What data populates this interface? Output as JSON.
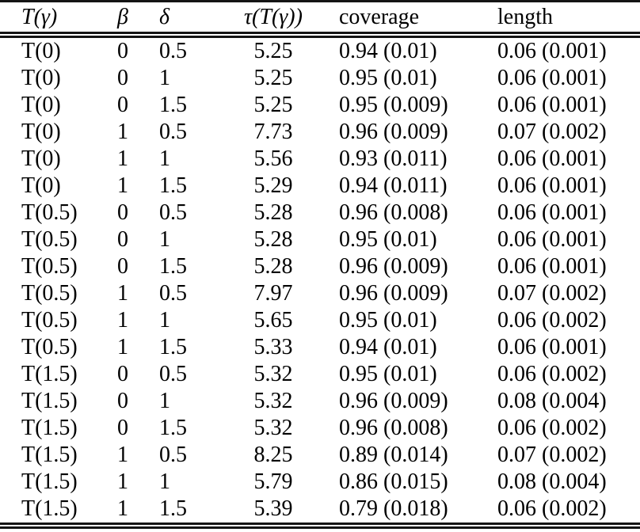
{
  "table": {
    "columns": [
      {
        "key": "t-gamma",
        "label": "T(γ)",
        "math": true
      },
      {
        "key": "beta",
        "label": "β",
        "math": true
      },
      {
        "key": "delta",
        "label": "δ",
        "math": true
      },
      {
        "key": "tau-t-gamma",
        "label": "τ(T(γ))",
        "math": true
      },
      {
        "key": "coverage",
        "label": "coverage",
        "math": false
      },
      {
        "key": "length",
        "label": "length",
        "math": false
      }
    ],
    "rows": [
      [
        "T(0)",
        "0",
        "0.5",
        "5.25",
        "0.94 (0.01)",
        "0.06 (0.001)"
      ],
      [
        "T(0)",
        "0",
        "1",
        "5.25",
        "0.95 (0.01)",
        "0.06 (0.001)"
      ],
      [
        "T(0)",
        "0",
        "1.5",
        "5.25",
        "0.95 (0.009)",
        "0.06 (0.001)"
      ],
      [
        "T(0)",
        "1",
        "0.5",
        "7.73",
        "0.96 (0.009)",
        "0.07 (0.002)"
      ],
      [
        "T(0)",
        "1",
        "1",
        "5.56",
        "0.93 (0.011)",
        "0.06 (0.001)"
      ],
      [
        "T(0)",
        "1",
        "1.5",
        "5.29",
        "0.94 (0.011)",
        "0.06 (0.001)"
      ],
      [
        "T(0.5)",
        "0",
        "0.5",
        "5.28",
        "0.96 (0.008)",
        "0.06 (0.001)"
      ],
      [
        "T(0.5)",
        "0",
        "1",
        "5.28",
        "0.95 (0.01)",
        "0.06 (0.001)"
      ],
      [
        "T(0.5)",
        "0",
        "1.5",
        "5.28",
        "0.96 (0.009)",
        "0.06 (0.001)"
      ],
      [
        "T(0.5)",
        "1",
        "0.5",
        "7.97",
        "0.96 (0.009)",
        "0.07 (0.002)"
      ],
      [
        "T(0.5)",
        "1",
        "1",
        "5.65",
        "0.95 (0.01)",
        "0.06 (0.002)"
      ],
      [
        "T(0.5)",
        "1",
        "1.5",
        "5.33",
        "0.94 (0.01)",
        "0.06 (0.001)"
      ],
      [
        "T(1.5)",
        "0",
        "0.5",
        "5.32",
        "0.95 (0.01)",
        "0.06 (0.002)"
      ],
      [
        "T(1.5)",
        "0",
        "1",
        "5.32",
        "0.96 (0.009)",
        "0.08 (0.004)"
      ],
      [
        "T(1.5)",
        "0",
        "1.5",
        "5.32",
        "0.96 (0.008)",
        "0.06 (0.002)"
      ],
      [
        "T(1.5)",
        "1",
        "0.5",
        "8.25",
        "0.89 (0.014)",
        "0.07 (0.002)"
      ],
      [
        "T(1.5)",
        "1",
        "1",
        "5.79",
        "0.86 (0.015)",
        "0.08 (0.004)"
      ],
      [
        "T(1.5)",
        "1",
        "1.5",
        "5.39",
        "0.79 (0.018)",
        "0.06 (0.002)"
      ]
    ],
    "colors": {
      "text": "#000000",
      "rule": "#141414",
      "background": "#ffffff"
    }
  }
}
